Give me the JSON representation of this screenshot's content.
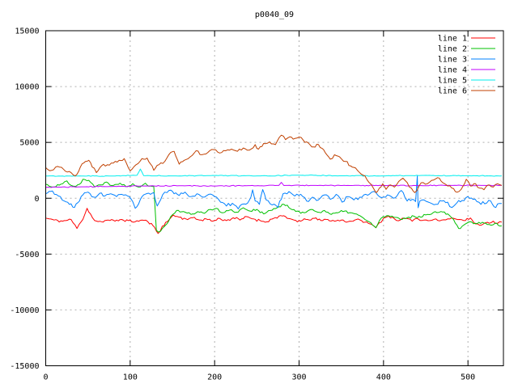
{
  "chart_data": {
    "type": "line",
    "title": "p0040_09",
    "xlabel": "",
    "ylabel": "",
    "xlim": [
      0,
      542
    ],
    "ylim": [
      -15000,
      15000
    ],
    "x_ticks": [
      0,
      100,
      200,
      300,
      400,
      500
    ],
    "y_ticks": [
      -15000,
      -10000,
      -5000,
      0,
      5000,
      10000,
      15000
    ],
    "grid": true,
    "grid_style": "dashed",
    "legend_position": "top-right-inside",
    "colors": {
      "background": "#ffffff",
      "border": "#000000",
      "grid": "#b0b0b0",
      "text": "#000000"
    },
    "series": [
      {
        "name": "line 1",
        "color": "#ff0000",
        "noise": 140,
        "seed": 11,
        "x": [
          0,
          10,
          20,
          30,
          37,
          42,
          46,
          49,
          53,
          58,
          66,
          74,
          82,
          90,
          98,
          106,
          114,
          121,
          127,
          133,
          138,
          144,
          151,
          158,
          166,
          174,
          182,
          190,
          198,
          206,
          214,
          222,
          230,
          238,
          246,
          254,
          262,
          270,
          278,
          286,
          294,
          302,
          310,
          318,
          326,
          334,
          342,
          350,
          358,
          366,
          374,
          382,
          388,
          391,
          395,
          400,
          406,
          413,
          420,
          427,
          434,
          441,
          448,
          455,
          462,
          469,
          476,
          483,
          490,
          497,
          503,
          509,
          516,
          523,
          530,
          535,
          540
        ],
        "y": [
          -1780,
          -1950,
          -2050,
          -1900,
          -2700,
          -2100,
          -1500,
          -900,
          -1400,
          -2000,
          -2100,
          -1950,
          -2050,
          -1900,
          -2000,
          -2100,
          -1950,
          -2100,
          -2450,
          -3150,
          -2500,
          -2100,
          -1500,
          -1700,
          -1850,
          -1750,
          -1950,
          -1850,
          -2050,
          -1800,
          -2000,
          -1750,
          -1950,
          -1650,
          -1850,
          -2000,
          -2100,
          -1800,
          -1550,
          -1800,
          -1950,
          -2050,
          -1900,
          -1800,
          -2000,
          -1900,
          -2050,
          -1950,
          -2100,
          -1950,
          -2000,
          -2250,
          -2450,
          -2640,
          -2200,
          -1800,
          -1600,
          -1850,
          -1950,
          -1800,
          -2050,
          -1850,
          -1950,
          -2000,
          -1850,
          -1950,
          -1850,
          -1800,
          -1900,
          -2000,
          -1770,
          -2300,
          -2400,
          -2150,
          -2050,
          -2250,
          -2130
        ]
      },
      {
        "name": "line 2",
        "color": "#00c000",
        "noise": 130,
        "seed": 22,
        "x": [
          0,
          10,
          20,
          25,
          32,
          40,
          44,
          51,
          58,
          65,
          72,
          80,
          88,
          95,
          103,
          110,
          118,
          124,
          128,
          131,
          136,
          142,
          148,
          155,
          165,
          172,
          180,
          188,
          195,
          202,
          210,
          218,
          226,
          234,
          242,
          250,
          258,
          266,
          274,
          282,
          290,
          298,
          306,
          314,
          322,
          330,
          338,
          346,
          354,
          362,
          370,
          378,
          385,
          391,
          397,
          404,
          412,
          420,
          428,
          436,
          444,
          452,
          461,
          468,
          476,
          483,
          489,
          495,
          502,
          509,
          517,
          525,
          532,
          540
        ],
        "y": [
          1250,
          1000,
          1300,
          1550,
          1100,
          1250,
          1700,
          1600,
          1000,
          1200,
          1450,
          1150,
          1350,
          1050,
          1300,
          1000,
          1350,
          1100,
          1050,
          -2870,
          -2950,
          -2400,
          -1650,
          -1100,
          -1250,
          -1450,
          -1200,
          -1350,
          -1000,
          -900,
          -1300,
          -1050,
          -1250,
          -850,
          -1150,
          -1000,
          -1400,
          -1100,
          -850,
          -550,
          -950,
          -1150,
          -1300,
          -1000,
          -1250,
          -1100,
          -1450,
          -1300,
          -1150,
          -1300,
          -1500,
          -1900,
          -2200,
          -2640,
          -1800,
          -1550,
          -1700,
          -1900,
          -1750,
          -1600,
          -1700,
          -1450,
          -1200,
          -1190,
          -1400,
          -1900,
          -2700,
          -2400,
          -2100,
          -2250,
          -2150,
          -2350,
          -2250,
          -2480
        ]
      },
      {
        "name": "line 3",
        "color": "#0080ff",
        "noise": 180,
        "seed": 33,
        "x": [
          0,
          8,
          15,
          22,
          28,
          34,
          38,
          44,
          50,
          57,
          64,
          70,
          77,
          84,
          90,
          97,
          103,
          106,
          110,
          116,
          122,
          128,
          132,
          136,
          141,
          146,
          152,
          158,
          165,
          172,
          179,
          186,
          193,
          200,
          207,
          214,
          221,
          228,
          235,
          241,
          245,
          248,
          253,
          257,
          261,
          268,
          275,
          281,
          288,
          295,
          302,
          309,
          316,
          323,
          330,
          337,
          344,
          351,
          358,
          365,
          372,
          379,
          386,
          393,
          400,
          407,
          414,
          421,
          428,
          434,
          438,
          440,
          441,
          443,
          448,
          455,
          462,
          469,
          476,
          481,
          487,
          493,
          500,
          506,
          513,
          520,
          527,
          533,
          537,
          540
        ],
        "y": [
          400,
          650,
          200,
          -250,
          -550,
          -830,
          -400,
          300,
          550,
          100,
          450,
          200,
          400,
          150,
          350,
          200,
          -300,
          -900,
          -500,
          300,
          450,
          500,
          -700,
          -150,
          550,
          700,
          400,
          250,
          550,
          150,
          400,
          100,
          350,
          150,
          -350,
          -700,
          -450,
          -950,
          -500,
          -200,
          750,
          -250,
          -550,
          780,
          -150,
          -600,
          -830,
          400,
          600,
          200,
          350,
          -250,
          100,
          -150,
          300,
          -100,
          350,
          -350,
          150,
          -150,
          100,
          350,
          550,
          300,
          100,
          250,
          50,
          700,
          -250,
          -100,
          -300,
          2000,
          -850,
          -250,
          -150,
          -400,
          -550,
          -250,
          -350,
          -830,
          -400,
          -200,
          150,
          -100,
          -350,
          -500,
          -250,
          -830,
          -470,
          -470
        ]
      },
      {
        "name": "line 4",
        "color": "#c000ff",
        "noise": 50,
        "seed": 44,
        "x": [
          0,
          40,
          80,
          120,
          160,
          200,
          240,
          276,
          279,
          282,
          320,
          360,
          400,
          440,
          480,
          520,
          540
        ],
        "y": [
          980,
          1020,
          1060,
          1100,
          1120,
          1100,
          1130,
          1150,
          1420,
          1140,
          1150,
          1140,
          1150,
          1130,
          1150,
          1150,
          1160
        ]
      },
      {
        "name": "line 5",
        "color": "#00eeee",
        "noise": 45,
        "seed": 55,
        "x": [
          0,
          40,
          80,
          108,
          112,
          116,
          150,
          200,
          250,
          300,
          350,
          400,
          450,
          500,
          540
        ],
        "y": [
          1990,
          2000,
          1990,
          2050,
          2620,
          2020,
          2000,
          2040,
          2000,
          2060,
          2010,
          2000,
          2050,
          2010,
          2000
        ]
      },
      {
        "name": "line 6",
        "color": "#c04000",
        "noise": 140,
        "seed": 66,
        "x": [
          0,
          7,
          14,
          21,
          28,
          35,
          41,
          47,
          51,
          55,
          60,
          66,
          73,
          80,
          87,
          93,
          100,
          107,
          114,
          120,
          128,
          134,
          141,
          148,
          152,
          158,
          164,
          171,
          178,
          185,
          192,
          199,
          206,
          213,
          220,
          227,
          234,
          241,
          248,
          252,
          258,
          265,
          272,
          279,
          284,
          289,
          295,
          300,
          305,
          311,
          317,
          323,
          329,
          337,
          342,
          348,
          355,
          361,
          367,
          373,
          378,
          383,
          388,
          391,
          395,
          399,
          403,
          408,
          413,
          418,
          423,
          428,
          433,
          437,
          442,
          447,
          452,
          457,
          464,
          470,
          476,
          481,
          487,
          492,
          498,
          503,
          509,
          514,
          519,
          525,
          530,
          535,
          540
        ],
        "y": [
          2750,
          2500,
          2850,
          2600,
          2400,
          2000,
          2800,
          3300,
          3400,
          2800,
          2300,
          2900,
          3000,
          3150,
          3400,
          3550,
          2450,
          3000,
          3550,
          3600,
          2500,
          3000,
          3300,
          4100,
          4200,
          3050,
          3400,
          3700,
          4250,
          3900,
          4100,
          4350,
          4050,
          4250,
          4400,
          4200,
          4500,
          4300,
          4800,
          4400,
          4900,
          5050,
          4800,
          5650,
          5250,
          5500,
          5350,
          5480,
          5200,
          4950,
          4600,
          4800,
          4350,
          3500,
          3900,
          3700,
          3300,
          2900,
          2700,
          2200,
          2000,
          1400,
          900,
          500,
          900,
          1300,
          800,
          1200,
          1000,
          1500,
          1800,
          1400,
          900,
          500,
          1100,
          1400,
          1300,
          1600,
          1840,
          1400,
          1100,
          900,
          540,
          800,
          1700,
          1100,
          1300,
          900,
          760,
          1200,
          1000,
          1300,
          1150
        ]
      }
    ]
  }
}
